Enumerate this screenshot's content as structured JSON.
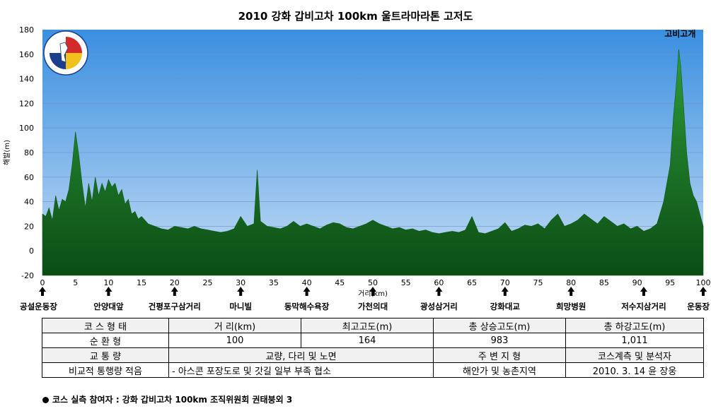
{
  "chart_data": {
    "type": "area",
    "title": "2010 강화 갑비고차 100km 울트라마라톤 고저도",
    "xlabel": "거리(km)",
    "ylabel": "해발(m)",
    "xlim": [
      0,
      100
    ],
    "ylim": [
      -20,
      180
    ],
    "x_ticks": [
      0,
      5,
      10,
      15,
      20,
      25,
      30,
      35,
      40,
      45,
      50,
      55,
      60,
      65,
      70,
      75,
      80,
      85,
      90,
      95,
      100
    ],
    "y_ticks": [
      -20,
      0,
      20,
      40,
      60,
      80,
      100,
      120,
      140,
      160,
      180
    ],
    "grid": true,
    "colors": {
      "fill_top": "#2e9b3a",
      "fill_bottom": "#0b4d14",
      "sky_top": "#3a8fe0",
      "sky_bottom": "#c4dcf5"
    },
    "series": [
      {
        "x": [
          0,
          0.5,
          1,
          1.5,
          2,
          2.5,
          3,
          3.5,
          4,
          4.5,
          5,
          5.5,
          6,
          6.5,
          7,
          7.5,
          8,
          8.5,
          9,
          9.5,
          10,
          10.5,
          11,
          11.5,
          12,
          12.5,
          13,
          13.5,
          14,
          14.5,
          15,
          16,
          17,
          18,
          19,
          20,
          21,
          22,
          23,
          24,
          25,
          26,
          27,
          28,
          29,
          30,
          31,
          32,
          32.5,
          33,
          34,
          35,
          36,
          37,
          38,
          39,
          40,
          41,
          42,
          43,
          44,
          45,
          46,
          47,
          48,
          49,
          50,
          51,
          52,
          53,
          54,
          55,
          56,
          57,
          58,
          59,
          60,
          61,
          62,
          63,
          64,
          65,
          66,
          67,
          68,
          69,
          70,
          71,
          72,
          73,
          74,
          75,
          76,
          77,
          78,
          79,
          80,
          81,
          82,
          83,
          84,
          85,
          86,
          87,
          88,
          89,
          90,
          91,
          92,
          93,
          94,
          95,
          95.5,
          96,
          96.3,
          96.6,
          97,
          97.5,
          98,
          98.5,
          99,
          99.5,
          100
        ],
        "y": [
          30,
          28,
          35,
          25,
          45,
          33,
          42,
          40,
          50,
          70,
          97,
          78,
          55,
          35,
          55,
          40,
          60,
          45,
          55,
          48,
          58,
          52,
          55,
          45,
          50,
          38,
          42,
          30,
          32,
          26,
          28,
          22,
          20,
          18,
          17,
          20,
          19,
          18,
          20,
          18,
          17,
          16,
          15,
          16,
          18,
          28,
          20,
          22,
          66,
          24,
          20,
          19,
          18,
          20,
          24,
          20,
          22,
          20,
          18,
          21,
          23,
          22,
          19,
          18,
          20,
          22,
          25,
          22,
          20,
          18,
          19,
          17,
          18,
          16,
          17,
          15,
          14,
          15,
          16,
          15,
          17,
          28,
          15,
          14,
          16,
          18,
          23,
          16,
          18,
          21,
          20,
          22,
          18,
          25,
          30,
          20,
          22,
          25,
          30,
          26,
          22,
          28,
          24,
          20,
          22,
          18,
          20,
          16,
          18,
          22,
          40,
          70,
          110,
          140,
          164,
          150,
          120,
          80,
          55,
          45,
          40,
          30,
          20
        ]
      }
    ],
    "landmarks": [
      {
        "km": 0,
        "name": "공설운동장"
      },
      {
        "km": 10,
        "name": "안양대앞"
      },
      {
        "km": 20,
        "name": "건평포구삼거리"
      },
      {
        "km": 30,
        "name": "마니빌"
      },
      {
        "km": 40,
        "name": "동막해수욕장"
      },
      {
        "km": 50,
        "name": "가천의대"
      },
      {
        "km": 60,
        "name": "광성삼거리"
      },
      {
        "km": 70,
        "name": "강화대교"
      },
      {
        "km": 80,
        "name": "희망병원"
      },
      {
        "km": 91,
        "name": "저수지삼거리"
      },
      {
        "km": 100,
        "name": "운동장"
      }
    ],
    "annotations": [
      {
        "km": 96.5,
        "text": "고비고개"
      }
    ]
  },
  "table": {
    "header1": [
      "코 스 형 태",
      "거 리(km)",
      "최고고도(m)",
      "총 상승고도(m)",
      "총 하강고도(m)"
    ],
    "row1": [
      "순 환 형",
      "100",
      "164",
      "983",
      "1,011"
    ],
    "header2": [
      "교 통 량",
      "교량, 다리 및 노면",
      "주 변 지 형",
      "코스계측 및 분석자"
    ],
    "row2": [
      "비교적 통행량 적음",
      "- 아스콘 포장도로 및 갓길 일부 부족 협소",
      "해안가 및 농촌지역",
      "2010. 3. 14 윤 장웅"
    ]
  },
  "note": "코스 실측 참여자 : 강화 갑비고차 100km 조직위원회 권태붕외 3"
}
